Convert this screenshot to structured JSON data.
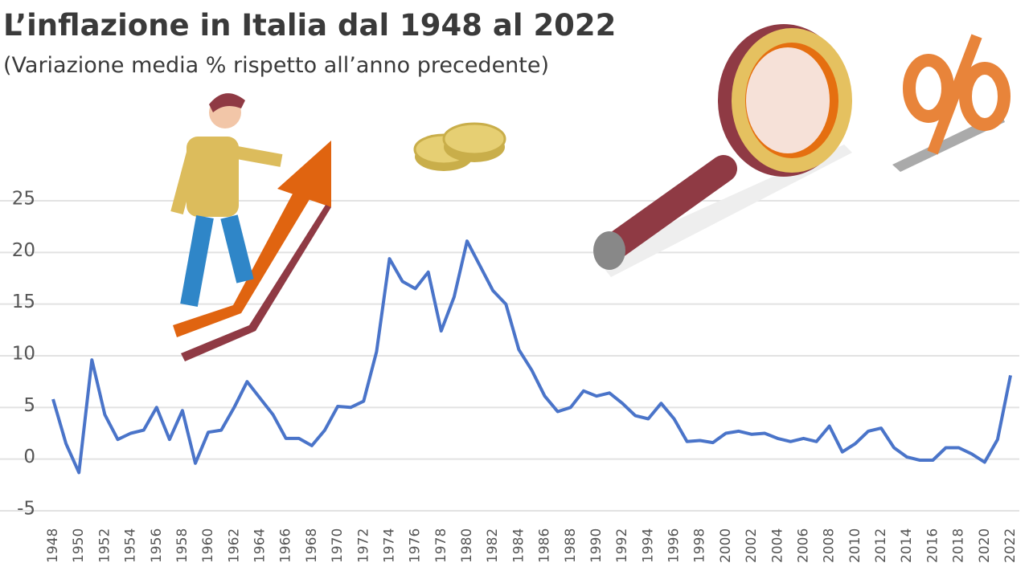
{
  "chart_data": {
    "type": "line",
    "title": "L’inflazione in Italia dal 1948 al 2022",
    "subtitle": "(Variazione media % rispetto all’anno precedente)",
    "x": [
      1948,
      1949,
      1950,
      1951,
      1952,
      1953,
      1954,
      1955,
      1956,
      1957,
      1958,
      1959,
      1960,
      1961,
      1962,
      1963,
      1964,
      1965,
      1966,
      1967,
      1968,
      1969,
      1970,
      1971,
      1972,
      1973,
      1974,
      1975,
      1976,
      1977,
      1978,
      1979,
      1980,
      1981,
      1982,
      1983,
      1984,
      1985,
      1986,
      1987,
      1988,
      1989,
      1990,
      1991,
      1992,
      1993,
      1994,
      1995,
      1996,
      1997,
      1998,
      1999,
      2000,
      2001,
      2002,
      2003,
      2004,
      2005,
      2006,
      2007,
      2008,
      2009,
      2010,
      2011,
      2012,
      2013,
      2014,
      2015,
      2016,
      2017,
      2018,
      2019,
      2020,
      2021,
      2022
    ],
    "values": [
      5.8,
      1.5,
      -1.3,
      9.6,
      4.3,
      1.9,
      2.5,
      2.8,
      5.0,
      1.9,
      4.7,
      -0.4,
      2.6,
      2.8,
      5.0,
      7.5,
      5.9,
      4.3,
      2.0,
      2.0,
      1.3,
      2.8,
      5.1,
      5.0,
      5.6,
      10.4,
      19.4,
      17.2,
      16.5,
      18.1,
      12.4,
      15.7,
      21.1,
      18.7,
      16.3,
      15.0,
      10.6,
      8.6,
      6.1,
      4.6,
      5.0,
      6.6,
      6.1,
      6.4,
      5.4,
      4.2,
      3.9,
      5.4,
      3.9,
      1.7,
      1.8,
      1.6,
      2.5,
      2.7,
      2.4,
      2.5,
      2.0,
      1.7,
      2.0,
      1.7,
      3.2,
      0.7,
      1.5,
      2.7,
      3.0,
      1.1,
      0.2,
      -0.1,
      -0.1,
      1.1,
      1.1,
      0.5,
      -0.3,
      1.9,
      8.1
    ],
    "color": "#4a74c9",
    "xlim": [
      1948,
      2022
    ],
    "xticks": [
      1948,
      1950,
      1952,
      1954,
      1956,
      1958,
      1960,
      1962,
      1964,
      1966,
      1968,
      1970,
      1972,
      1974,
      1976,
      1978,
      1980,
      1982,
      1984,
      1986,
      1988,
      1990,
      1992,
      1994,
      1996,
      1998,
      2000,
      2002,
      2004,
      2006,
      2008,
      2010,
      2012,
      2014,
      2016,
      2018,
      2020,
      2022
    ],
    "ylim": [
      -5,
      25
    ],
    "yticks": [
      -5,
      0,
      5,
      10,
      15,
      20,
      25
    ],
    "grid": true
  }
}
